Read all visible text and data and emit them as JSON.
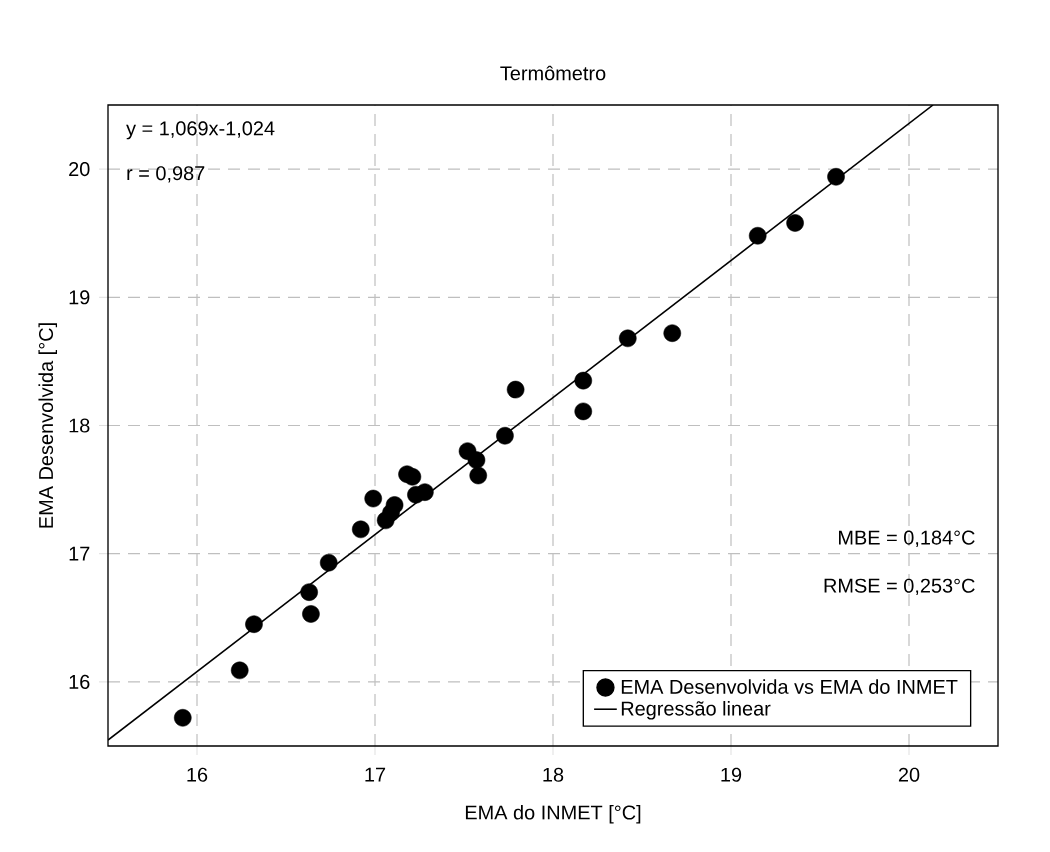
{
  "chart_data": {
    "type": "scatter",
    "title": "Termômetro",
    "xlabel": "EMA do INMET [°C]",
    "ylabel": "EMA Desenvolvida [°C]",
    "xlim": [
      15.5,
      20.5
    ],
    "ylim": [
      15.5,
      20.5
    ],
    "xticks": [
      16,
      17,
      18,
      19,
      20
    ],
    "yticks": [
      16,
      17,
      18,
      19,
      20
    ],
    "grid": true,
    "legend": "bottom right",
    "annotations": [
      "y = 1,069x-1,024",
      "r = 0,987",
      "MBE = 0,184°C",
      "RMSE = 0,253°C"
    ],
    "series": [
      {
        "name": "EMA Desenvolvida vs EMA do INMET",
        "color": "#000000",
        "marker": "circle",
        "x": [
          15.92,
          16.24,
          16.32,
          16.63,
          16.64,
          16.74,
          16.92,
          16.99,
          17.06,
          17.09,
          17.11,
          17.18,
          17.21,
          17.23,
          17.28,
          17.52,
          17.57,
          17.58,
          17.73,
          17.79,
          18.17,
          18.17,
          18.42,
          18.67,
          19.15,
          19.36,
          19.59
        ],
        "values": [
          15.72,
          16.09,
          16.45,
          16.7,
          16.53,
          16.93,
          17.19,
          17.43,
          17.26,
          17.32,
          17.38,
          17.62,
          17.6,
          17.46,
          17.48,
          17.8,
          17.73,
          17.61,
          17.92,
          18.28,
          18.35,
          18.11,
          18.68,
          18.72,
          19.48,
          19.58,
          19.94
        ]
      },
      {
        "name": "Regressão linear",
        "color": "#000000",
        "type": "line",
        "marker": "none",
        "line_style": "solid",
        "x": [
          15.5,
          20.135
        ],
        "values": [
          15.546,
          20.5
        ]
      }
    ]
  }
}
